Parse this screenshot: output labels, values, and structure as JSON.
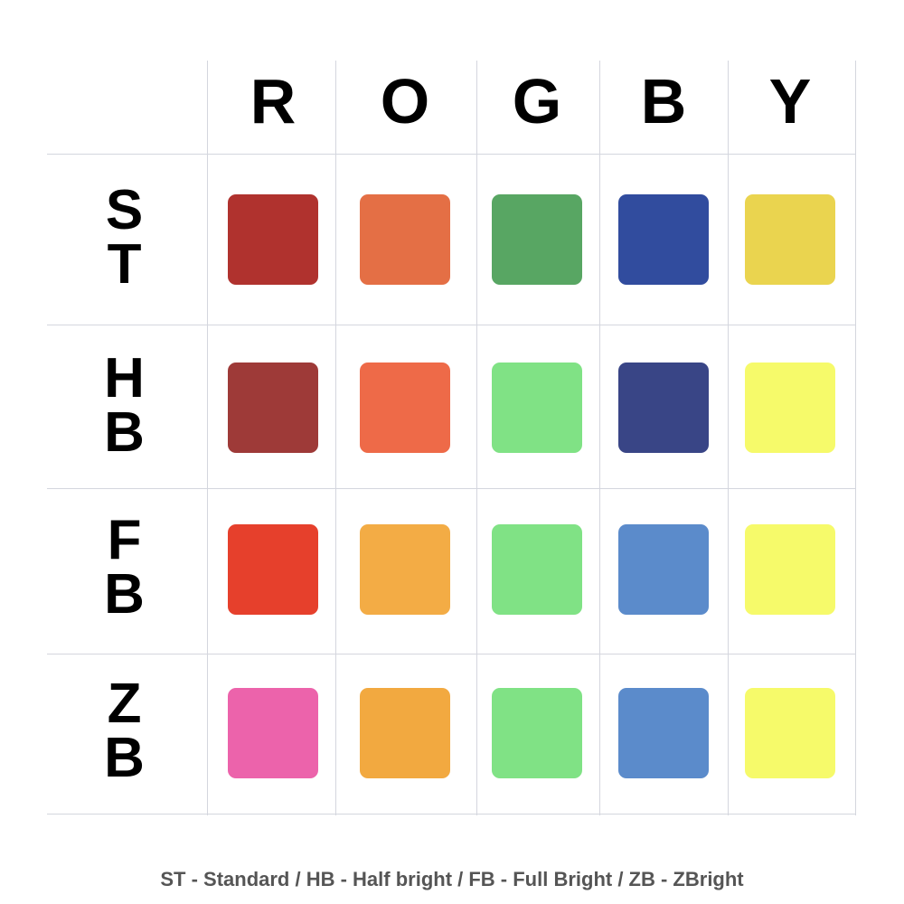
{
  "columns": [
    "R",
    "O",
    "G",
    "B",
    "Y"
  ],
  "rows": [
    {
      "label_top": "S",
      "label_bottom": "T",
      "colors": [
        "#B0322E",
        "#E46F45",
        "#58A663",
        "#314C9E",
        "#EAD44F"
      ]
    },
    {
      "label_top": "H",
      "label_bottom": "B",
      "colors": [
        "#9E3A38",
        "#EE6A48",
        "#80E285",
        "#394586",
        "#F6FA6A"
      ]
    },
    {
      "label_top": "F",
      "label_bottom": "B",
      "colors": [
        "#E6402C",
        "#F3AC45",
        "#80E285",
        "#5B8BCB",
        "#F6FA6A"
      ]
    },
    {
      "label_top": "Z",
      "label_bottom": "B",
      "colors": [
        "#EC63AB",
        "#F2A940",
        "#80E285",
        "#5B8BCB",
        "#F6FA6A"
      ]
    }
  ],
  "legend": "ST - Standard / HB - Half bright / FB - Full Bright / ZB - ZBright"
}
